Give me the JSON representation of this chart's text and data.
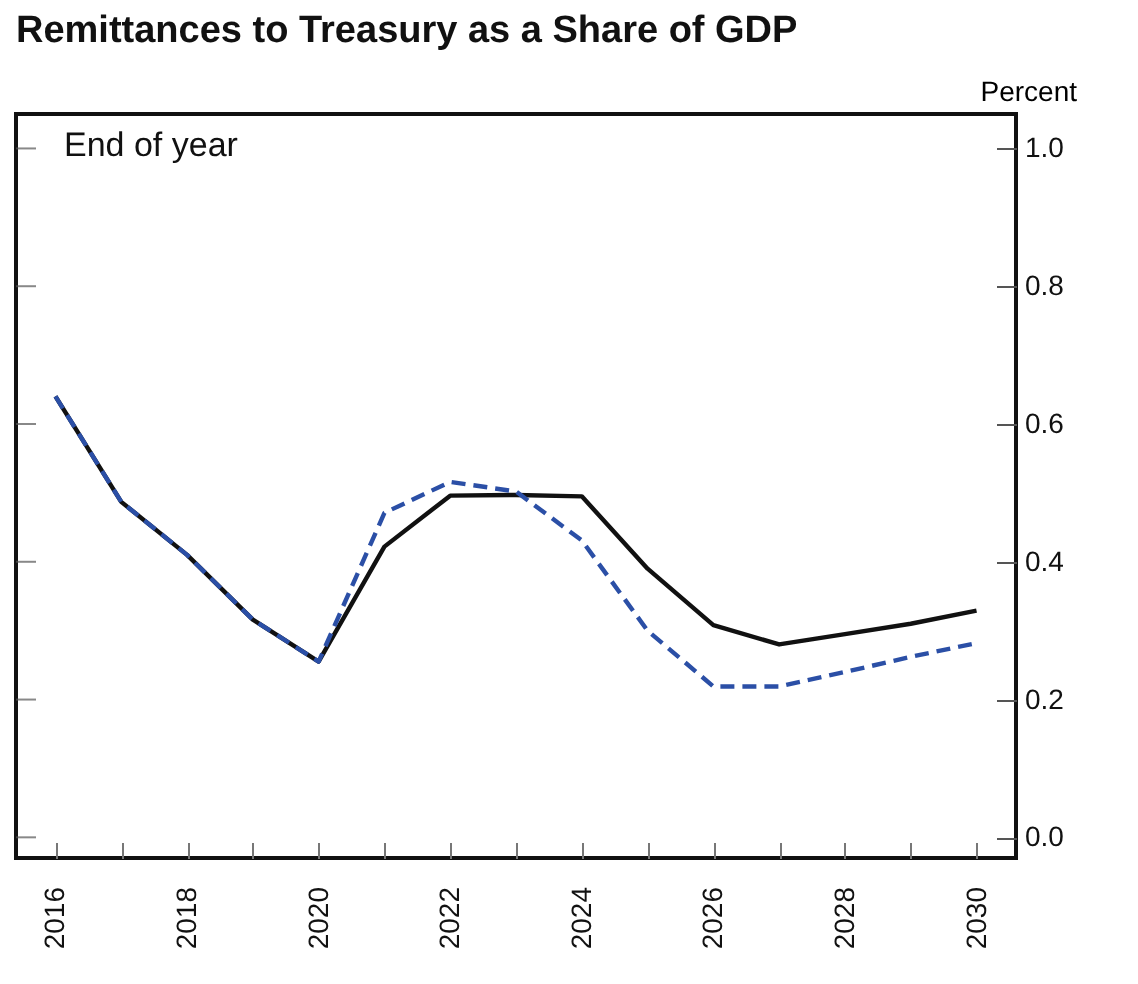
{
  "chart_data": {
    "type": "line",
    "title": "Remittances to Treasury as a Share of GDP",
    "ylabel": "Percent",
    "annotations": [
      "End of year"
    ],
    "x": [
      2016,
      2017,
      2018,
      2019,
      2020,
      2021,
      2022,
      2023,
      2024,
      2025,
      2026,
      2027,
      2028,
      2029,
      2030
    ],
    "series": [
      {
        "color": "#111111",
        "line_style": "solid",
        "values": [
          0.64,
          0.487,
          0.41,
          0.316,
          0.255,
          0.422,
          0.496,
          0.497,
          0.495,
          0.39,
          0.308,
          0.28,
          0.295,
          0.31,
          0.329
        ]
      },
      {
        "color": "#2b4fa6",
        "line_style": "dashed",
        "values": [
          0.64,
          0.487,
          0.41,
          0.316,
          0.255,
          0.471,
          0.516,
          0.502,
          0.431,
          0.3,
          0.219,
          0.219,
          0.24,
          0.262,
          0.282
        ]
      }
    ],
    "xlim": [
      2015.4,
      2030.6
    ],
    "xticks": [
      2016,
      {
        "value": 2017,
        "label": null
      },
      2018,
      {
        "value": 2019,
        "label": null
      },
      2020,
      {
        "value": 2021,
        "label": null
      },
      2022,
      {
        "value": 2023,
        "label": null
      },
      2024,
      {
        "value": 2025,
        "label": null
      },
      2026,
      {
        "value": 2027,
        "label": null
      },
      2028,
      {
        "value": 2029,
        "label": null
      },
      2030
    ],
    "ylim": [
      -0.03,
      1.05
    ],
    "yticks": [
      {
        "value": 0,
        "label": "0.0"
      },
      0.2,
      0.4,
      0.6,
      0.8,
      {
        "value": 1,
        "label": "1.0"
      }
    ],
    "grid": false,
    "marker": "none"
  }
}
